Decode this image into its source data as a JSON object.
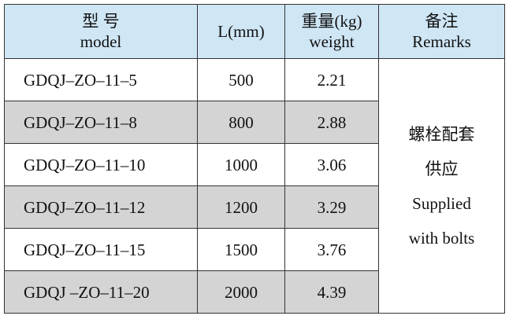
{
  "table": {
    "header": [
      [
        "型 号",
        "model"
      ],
      [
        "L(mm)"
      ],
      [
        "重量(kg)",
        "weight"
      ],
      [
        "备注",
        "Remarks"
      ]
    ],
    "rows": [
      [
        "GDQJ–ZO–11–5",
        "500",
        "2.21"
      ],
      [
        "GDQJ–ZO–11–8",
        "800",
        "2.88"
      ],
      [
        "GDQJ–ZO–11–10",
        "1000",
        "3.06"
      ],
      [
        "GDQJ–ZO–11–12",
        "1200",
        "3.29"
      ],
      [
        "GDQJ–ZO–11–15",
        "1500",
        "3.76"
      ],
      [
        "GDQJ –ZO–11–20",
        "2000",
        "4.39"
      ]
    ],
    "remarks": [
      "螺栓配套",
      "供应",
      "Supplied",
      "with bolts"
    ]
  }
}
